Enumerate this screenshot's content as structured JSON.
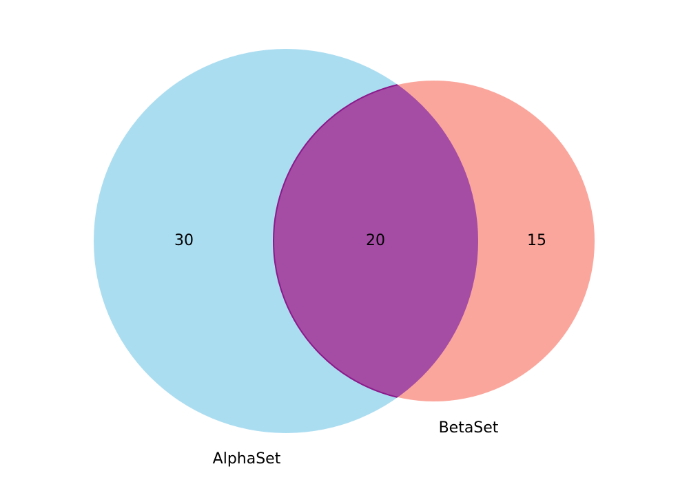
{
  "chart_data": {
    "type": "venn",
    "sets": [
      {
        "name": "AlphaSet",
        "only": 30,
        "color": "#87CEEB"
      },
      {
        "name": "BetaSet",
        "only": 15,
        "color": "#FA8072"
      }
    ],
    "intersection": {
      "value": 20,
      "color": "#A54CA5"
    }
  },
  "labels": {
    "alpha_only": "30",
    "intersection": "20",
    "beta_only": "15",
    "alpha_name": "AlphaSet",
    "beta_name": "BetaSet"
  },
  "colors": {
    "alpha_fill": "#87CEEB",
    "beta_fill": "#FA8072",
    "overlap_fill": "#A54CA5",
    "overlap_stroke": "#8B1A8B"
  }
}
